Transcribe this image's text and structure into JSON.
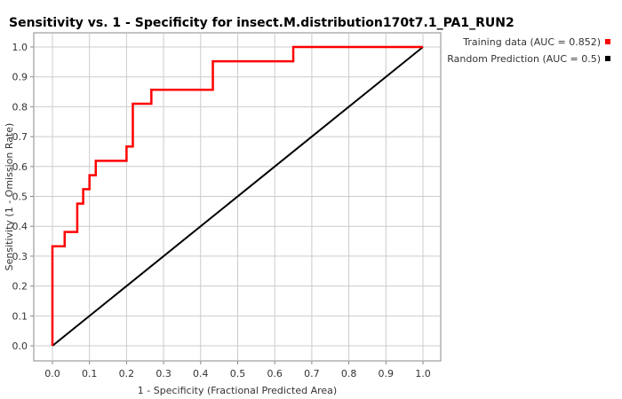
{
  "chart_data": {
    "type": "line",
    "title": "Sensitivity vs. 1 - Specificity for insect.M.distribution170t7.1_PA1_RUN2",
    "xlabel": "1 - Specificity  (Fractional Predicted Area)",
    "ylabel": "Sensitivity  (1 - Omission Rate)",
    "xlim": [
      0,
      1
    ],
    "ylim": [
      0,
      1
    ],
    "x_ticks": [
      "0.0",
      "0.1",
      "0.2",
      "0.3",
      "0.4",
      "0.5",
      "0.6",
      "0.7",
      "0.8",
      "0.9",
      "1.0"
    ],
    "y_ticks": [
      "0.0",
      "0.1",
      "0.2",
      "0.3",
      "0.4",
      "0.5",
      "0.6",
      "0.7",
      "0.8",
      "0.9",
      "1.0"
    ],
    "grid": true,
    "legend_position": "top-right",
    "series": [
      {
        "name": "Training data (AUC = 0.852)",
        "color": "#ff0000",
        "x": [
          0.0,
          0.0,
          0.033,
          0.033,
          0.067,
          0.067,
          0.083,
          0.083,
          0.1,
          0.1,
          0.117,
          0.117,
          0.2,
          0.2,
          0.217,
          0.217,
          0.267,
          0.267,
          0.433,
          0.433,
          0.65,
          0.65,
          1.0
        ],
        "y": [
          0.0,
          0.333,
          0.333,
          0.381,
          0.381,
          0.476,
          0.476,
          0.524,
          0.524,
          0.571,
          0.571,
          0.619,
          0.619,
          0.667,
          0.667,
          0.81,
          0.81,
          0.857,
          0.857,
          0.952,
          0.952,
          1.0,
          1.0
        ]
      },
      {
        "name": "Random Prediction (AUC = 0.5)",
        "color": "#000000",
        "x": [
          0,
          1
        ],
        "y": [
          0,
          1
        ]
      }
    ]
  }
}
